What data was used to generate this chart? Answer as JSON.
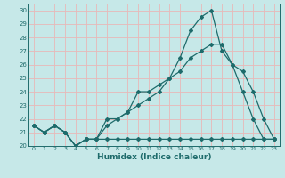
{
  "xlabel": "Humidex (Indice chaleur)",
  "xlim": [
    -0.5,
    23.5
  ],
  "ylim": [
    20,
    30.5
  ],
  "yticks": [
    20,
    21,
    22,
    23,
    24,
    25,
    26,
    27,
    28,
    29,
    30
  ],
  "xticks": [
    0,
    1,
    2,
    3,
    4,
    5,
    6,
    7,
    8,
    9,
    10,
    11,
    12,
    13,
    14,
    15,
    16,
    17,
    18,
    19,
    20,
    21,
    22,
    23
  ],
  "background_color": "#c6e8e8",
  "grid_color": "#e8b8b8",
  "line_color": "#1e6b6b",
  "line1_x": [
    0,
    1,
    2,
    3,
    4,
    5,
    6,
    7,
    8,
    9,
    10,
    11,
    12,
    13,
    14,
    15,
    16,
    17,
    18,
    19,
    20,
    21,
    22,
    23
  ],
  "line1_y": [
    21.5,
    21.0,
    21.5,
    21.0,
    20.0,
    20.5,
    20.5,
    20.5,
    20.5,
    20.5,
    20.5,
    20.5,
    20.5,
    20.5,
    20.5,
    20.5,
    20.5,
    20.5,
    20.5,
    20.5,
    20.5,
    20.5,
    20.5,
    20.5
  ],
  "line2_x": [
    0,
    1,
    2,
    3,
    4,
    5,
    6,
    7,
    8,
    9,
    10,
    11,
    12,
    13,
    14,
    15,
    16,
    17,
    18,
    19,
    20,
    21,
    22,
    23
  ],
  "line2_y": [
    21.5,
    21.0,
    21.5,
    21.0,
    20.0,
    20.5,
    20.5,
    21.5,
    22.0,
    22.5,
    24.0,
    24.0,
    24.5,
    25.0,
    26.5,
    28.5,
    29.5,
    30.0,
    27.0,
    26.0,
    24.0,
    22.0,
    20.5,
    20.5
  ],
  "line3_x": [
    0,
    1,
    2,
    3,
    4,
    5,
    6,
    7,
    8,
    9,
    10,
    11,
    12,
    13,
    14,
    15,
    16,
    17,
    18,
    19,
    20,
    21,
    22,
    23
  ],
  "line3_y": [
    21.5,
    21.0,
    21.5,
    21.0,
    20.0,
    20.5,
    20.5,
    22.0,
    22.0,
    22.5,
    23.0,
    23.5,
    24.0,
    25.0,
    25.5,
    26.5,
    27.0,
    27.5,
    27.5,
    26.0,
    25.5,
    24.0,
    22.0,
    20.5
  ]
}
